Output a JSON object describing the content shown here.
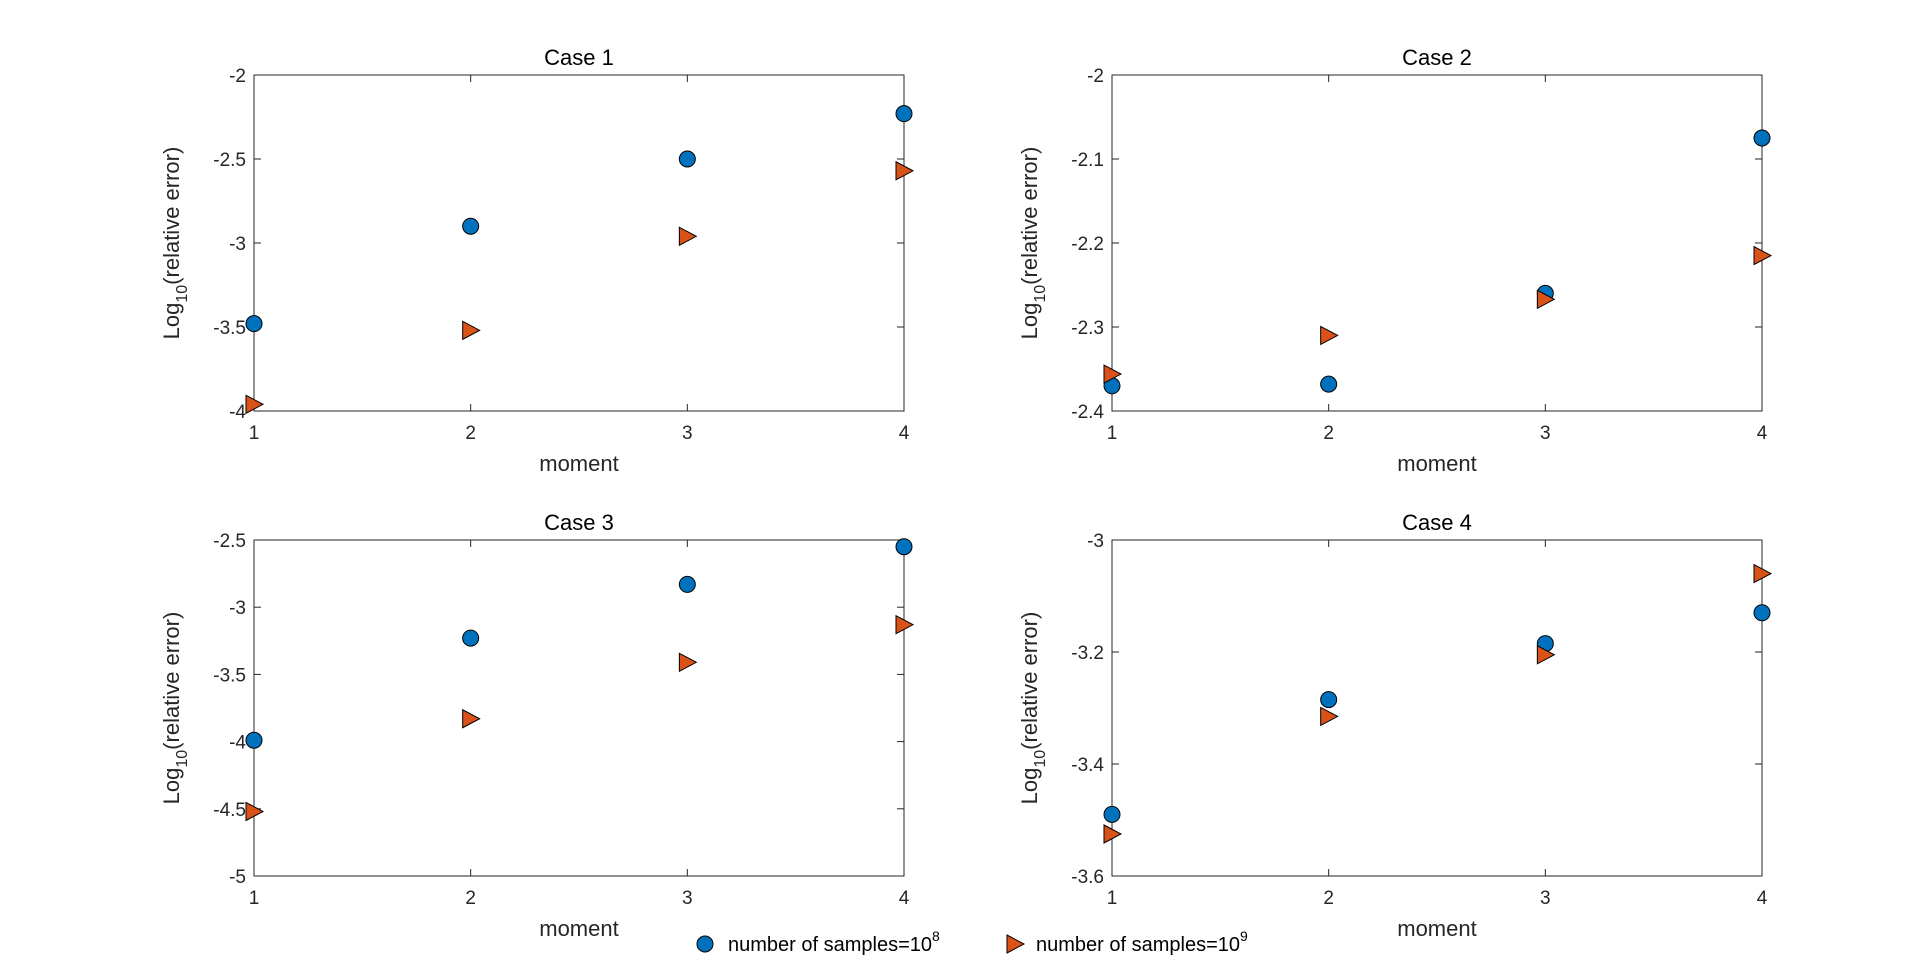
{
  "colors": {
    "series1": "#0072BD",
    "series2": "#D95319",
    "axis": "#262626"
  },
  "chart_data": [
    {
      "type": "scatter",
      "title": "Case 1",
      "xlabel": "moment",
      "ylabel_prefix": "Log",
      "ylabel_sub": "10",
      "ylabel_suffix": "(relative error)",
      "xlim": [
        1,
        4
      ],
      "ylim": [
        -4,
        -2
      ],
      "xticks": [
        "1",
        "2",
        "3",
        "4"
      ],
      "yticks": [
        -2,
        -2.5,
        -3,
        -3.5,
        -4
      ],
      "ytick_labels": [
        "-2",
        "-2.5",
        "-3",
        "-3.5",
        "-4"
      ],
      "x": [
        1,
        2,
        3,
        4
      ],
      "series": [
        {
          "name": "number of samples=10^8",
          "values": [
            -3.48,
            -2.9,
            -2.5,
            -2.23
          ]
        },
        {
          "name": "number of samples=10^9",
          "values": [
            -3.96,
            -3.52,
            -2.96,
            -2.57
          ]
        }
      ]
    },
    {
      "type": "scatter",
      "title": "Case 2",
      "xlabel": "moment",
      "ylabel_prefix": "Log",
      "ylabel_sub": "10",
      "ylabel_suffix": "(relative error)",
      "xlim": [
        1,
        4
      ],
      "ylim": [
        -2.4,
        -2
      ],
      "xticks": [
        "1",
        "2",
        "3",
        "4"
      ],
      "yticks": [
        -2,
        -2.1,
        -2.2,
        -2.3,
        -2.4
      ],
      "ytick_labels": [
        "-2",
        "-2.1",
        "-2.2",
        "-2.3",
        "-2.4"
      ],
      "x": [
        1,
        2,
        3,
        4
      ],
      "series": [
        {
          "name": "number of samples=10^8",
          "values": [
            -2.37,
            -2.368,
            -2.26,
            -2.075
          ]
        },
        {
          "name": "number of samples=10^9",
          "values": [
            -2.356,
            -2.31,
            -2.267,
            -2.215
          ]
        }
      ]
    },
    {
      "type": "scatter",
      "title": "Case 3",
      "xlabel": "moment",
      "ylabel_prefix": "Log",
      "ylabel_sub": "10",
      "ylabel_suffix": "(relative error)",
      "xlim": [
        1,
        4
      ],
      "ylim": [
        -5,
        -2.5
      ],
      "xticks": [
        "1",
        "2",
        "3",
        "4"
      ],
      "yticks": [
        -2.5,
        -3,
        -3.5,
        -4,
        -4.5,
        -5
      ],
      "ytick_labels": [
        "-2.5",
        "-3",
        "-3.5",
        "-4",
        "-4.5",
        "-5"
      ],
      "x": [
        1,
        2,
        3,
        4
      ],
      "series": [
        {
          "name": "number of samples=10^8",
          "values": [
            -3.99,
            -3.23,
            -2.83,
            -2.55
          ]
        },
        {
          "name": "number of samples=10^9",
          "values": [
            -4.52,
            -3.83,
            -3.41,
            -3.13
          ]
        }
      ]
    },
    {
      "type": "scatter",
      "title": "Case 4",
      "xlabel": "moment",
      "ylabel_prefix": "Log",
      "ylabel_sub": "10",
      "ylabel_suffix": "(relative error)",
      "xlim": [
        1,
        4
      ],
      "ylim": [
        -3.6,
        -3
      ],
      "xticks": [
        "1",
        "2",
        "3",
        "4"
      ],
      "yticks": [
        -3,
        -3.2,
        -3.4,
        -3.6
      ],
      "ytick_labels": [
        "-3",
        "-3.2",
        "-3.4",
        "-3.6"
      ],
      "x": [
        1,
        2,
        3,
        4
      ],
      "series": [
        {
          "name": "number of samples=10^8",
          "values": [
            -3.49,
            -3.285,
            -3.185,
            -3.13
          ]
        },
        {
          "name": "number of samples=10^9",
          "values": [
            -3.525,
            -3.315,
            -3.205,
            -3.06
          ]
        }
      ]
    }
  ],
  "legend": {
    "position": "bottom-center",
    "items": [
      {
        "marker": "circle",
        "text": "number of samples=10",
        "sup": "8"
      },
      {
        "marker": "triangle-right",
        "text": "number of samples=10",
        "sup": "9"
      }
    ]
  }
}
